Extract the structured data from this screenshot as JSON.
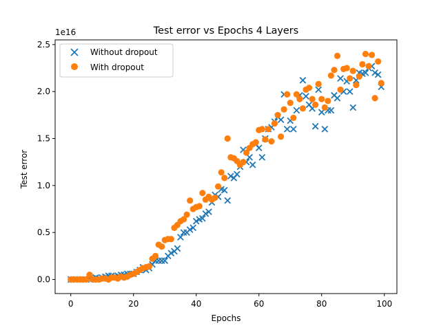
{
  "chart_data": {
    "type": "scatter",
    "title": "Test error vs Epochs 4 Layers",
    "xlabel": "Epochs",
    "ylabel": "Test error",
    "y_offset_label": "1e16",
    "xlim": [
      -5,
      104
    ],
    "ylim": [
      -0.15,
      2.55
    ],
    "y_unit_multiplier": 1e+16,
    "xticks": [
      0,
      20,
      40,
      60,
      80,
      100
    ],
    "xtick_labels": [
      "0",
      "20",
      "40",
      "60",
      "80",
      "100"
    ],
    "yticks": [
      0.0,
      0.5,
      1.0,
      1.5,
      2.0,
      2.5
    ],
    "ytick_labels": [
      "0.0",
      "0.5",
      "1.0",
      "1.5",
      "2.0",
      "2.5"
    ],
    "grid": false,
    "legend_position": "upper-left",
    "series": [
      {
        "name": "Without dropout",
        "marker": "x",
        "color": "#1f77b4",
        "x": [
          0,
          1,
          2,
          3,
          4,
          5,
          6,
          7,
          8,
          9,
          10,
          11,
          12,
          13,
          14,
          15,
          16,
          17,
          18,
          19,
          20,
          21,
          22,
          23,
          24,
          25,
          26,
          27,
          28,
          29,
          30,
          31,
          32,
          33,
          34,
          35,
          36,
          37,
          38,
          39,
          40,
          41,
          42,
          43,
          44,
          45,
          46,
          47,
          48,
          49,
          50,
          51,
          52,
          53,
          54,
          55,
          56,
          57,
          58,
          59,
          60,
          61,
          62,
          63,
          64,
          65,
          66,
          67,
          68,
          69,
          70,
          71,
          72,
          73,
          74,
          75,
          76,
          77,
          78,
          79,
          80,
          81,
          82,
          83,
          84,
          85,
          86,
          87,
          88,
          89,
          90,
          91,
          92,
          93,
          94,
          95,
          96,
          97,
          98,
          99
        ],
        "y": [
          0.0,
          0.0,
          0.0,
          0.0,
          0.0,
          0.0,
          0.01,
          0.01,
          0.02,
          0.01,
          0.02,
          0.03,
          0.04,
          0.04,
          0.03,
          0.04,
          0.05,
          0.05,
          0.06,
          0.06,
          0.06,
          0.08,
          0.1,
          0.13,
          0.1,
          0.12,
          0.16,
          0.2,
          0.2,
          0.2,
          0.2,
          0.25,
          0.28,
          0.3,
          0.33,
          0.45,
          0.5,
          0.5,
          0.53,
          0.55,
          0.62,
          0.64,
          0.65,
          0.7,
          0.72,
          0.82,
          0.9,
          0.88,
          0.96,
          0.95,
          0.84,
          1.1,
          1.08,
          1.12,
          1.2,
          1.38,
          1.25,
          1.3,
          1.22,
          1.44,
          1.4,
          1.3,
          1.5,
          1.6,
          1.62,
          1.68,
          1.73,
          1.7,
          1.97,
          1.6,
          1.69,
          1.6,
          1.8,
          1.96,
          2.12,
          1.95,
          1.86,
          1.82,
          1.63,
          2.02,
          1.78,
          1.6,
          1.8,
          1.8,
          1.96,
          1.93,
          2.14,
          2.0,
          2.11,
          2.0,
          1.83,
          2.12,
          2.2,
          2.19,
          2.2,
          2.25,
          2.27,
          2.2,
          2.18,
          2.05
        ]
      },
      {
        "name": "With dropout",
        "marker": "o",
        "color": "#ff7f0e",
        "x": [
          0,
          1,
          2,
          3,
          4,
          5,
          6,
          7,
          8,
          9,
          10,
          11,
          12,
          13,
          14,
          15,
          16,
          17,
          18,
          19,
          20,
          21,
          22,
          23,
          24,
          25,
          26,
          27,
          28,
          29,
          30,
          31,
          32,
          33,
          34,
          35,
          36,
          37,
          38,
          39,
          40,
          41,
          42,
          43,
          44,
          45,
          46,
          47,
          48,
          49,
          50,
          51,
          52,
          53,
          54,
          55,
          56,
          57,
          58,
          59,
          60,
          61,
          62,
          63,
          64,
          65,
          66,
          67,
          68,
          69,
          70,
          71,
          72,
          73,
          74,
          75,
          76,
          77,
          78,
          79,
          80,
          81,
          82,
          83,
          84,
          85,
          86,
          87,
          88,
          89,
          90,
          91,
          92,
          93,
          94,
          95,
          96,
          97,
          98,
          99
        ],
        "y": [
          0.0,
          0.0,
          0.0,
          0.0,
          0.0,
          0.0,
          0.05,
          0.0,
          0.0,
          0.0,
          0.01,
          0.01,
          0.0,
          0.02,
          0.02,
          0.01,
          0.03,
          0.02,
          0.03,
          0.05,
          0.06,
          0.08,
          0.1,
          0.12,
          0.13,
          0.14,
          0.22,
          0.25,
          0.37,
          0.35,
          0.42,
          0.43,
          0.43,
          0.55,
          0.58,
          0.62,
          0.64,
          0.69,
          0.84,
          0.75,
          0.77,
          0.78,
          0.92,
          0.85,
          0.88,
          0.85,
          0.87,
          0.99,
          1.14,
          1.08,
          1.5,
          1.3,
          1.29,
          1.26,
          1.22,
          1.25,
          1.35,
          1.4,
          1.44,
          1.46,
          1.59,
          1.6,
          1.49,
          1.6,
          1.47,
          1.66,
          1.75,
          1.52,
          1.81,
          1.97,
          1.88,
          1.72,
          1.97,
          1.92,
          1.82,
          2.02,
          2.04,
          1.92,
          1.86,
          2.08,
          1.92,
          1.83,
          1.9,
          2.17,
          2.23,
          2.38,
          2.02,
          2.24,
          2.25,
          2.14,
          2.22,
          2.07,
          2.16,
          2.29,
          2.4,
          2.27,
          2.39,
          1.93,
          2.32,
          2.09
        ]
      }
    ]
  }
}
